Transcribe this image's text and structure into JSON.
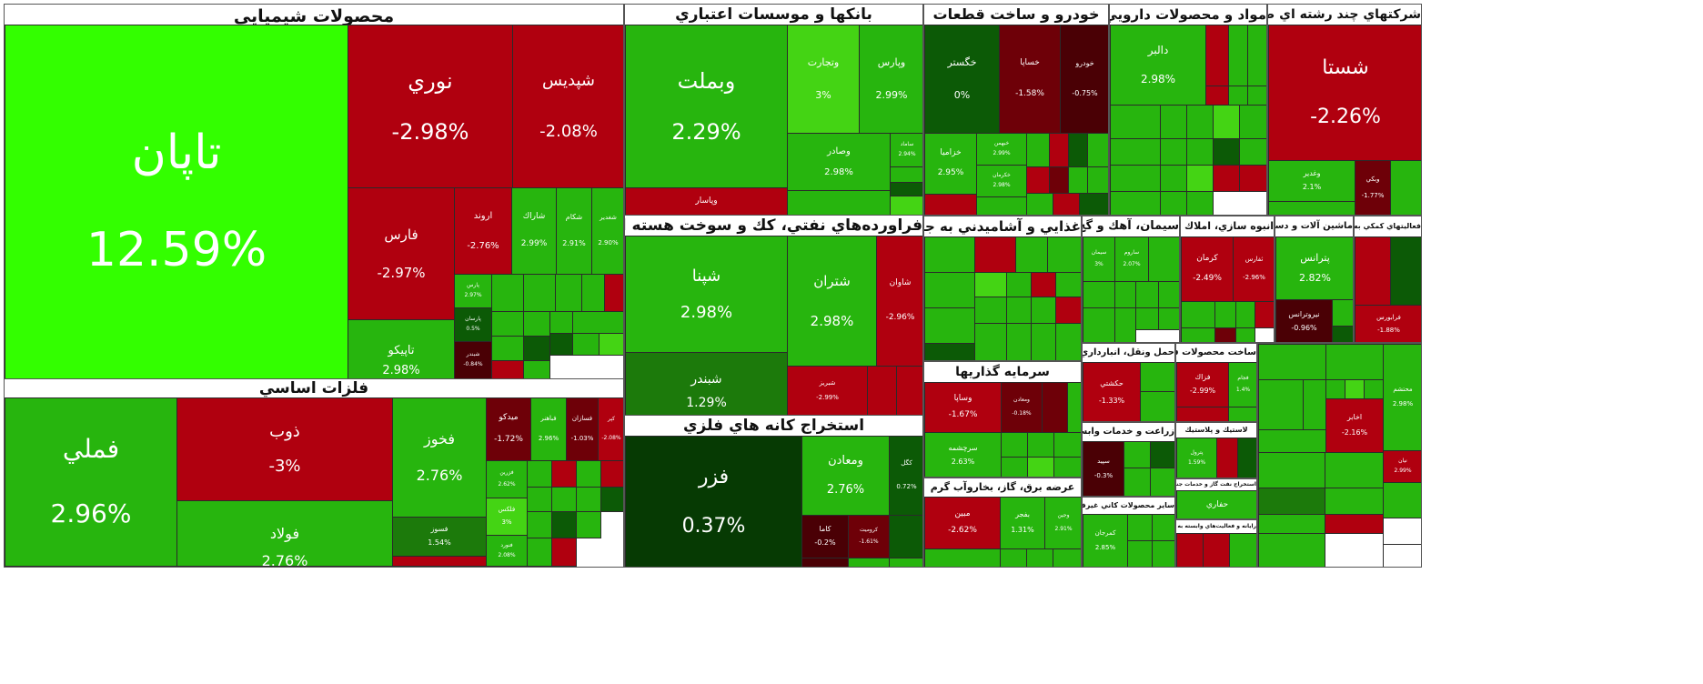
{
  "colors": {
    "bright_green": "#33ff00",
    "green": "#1e9e0a",
    "mid_green": "#27b50e",
    "light_green": "#44d414",
    "dark_green": "#0c5a06",
    "deep_green": "#063a03",
    "red": "#b0000f",
    "dark_red": "#6e0008",
    "deep_red": "#4a0005"
  },
  "sectors": [
    {
      "title": "محصولات شيميايي"
    },
    {
      "title": "فلزات اساسي"
    },
    {
      "title": "بانكها و موسسات اعتباري"
    },
    {
      "title": "فراورده‌هاي نفتي، كك و سوخت هسته اي"
    },
    {
      "title": "استخراج كانه هاي فلزي"
    },
    {
      "title": "خودرو و ساخت قطعات"
    },
    {
      "title": "مواد و محصولات دارويي"
    },
    {
      "title": "شركتهاي چند رشته اي صنعتي"
    },
    {
      "title": "غذايي و آشاميدني به جز قند و شكر"
    },
    {
      "title": "سيمان، آهك و گچ"
    },
    {
      "title": "انبوه سازي، املاك و مستغلات"
    },
    {
      "title": "ماشين آلات و دستگاه‌هاي برقي"
    },
    {
      "title": "فعاليتهاي كمكي به نهادهاي مالي"
    },
    {
      "title": "حمل ونقل، انبارداري و ارتباطات"
    },
    {
      "title": "سرمايه گذاريها"
    },
    {
      "title": "ساخت محصولات فلزي"
    },
    {
      "title": "زراعت و خدمات وابسته"
    },
    {
      "title": "عرضه برق، گاز، بخاروآب گرم"
    },
    {
      "title": "ساير محصولات كاني غيرفلزي"
    },
    {
      "title": "لاستيك و پلاستيك"
    },
    {
      "title": "استخراج نفت گاز و خدمات جنبي جز اكتشاف"
    },
    {
      "title": "رايانه و فعاليت‌هاي وابسته به آن"
    }
  ],
  "tiles": [
    {
      "symbol": "تاپان",
      "change": "12.59%"
    },
    {
      "symbol": "نوري",
      "change": "-2.98%"
    },
    {
      "symbol": "شپديس",
      "change": "-2.08%"
    },
    {
      "symbol": "فارس",
      "change": "-2.97%"
    },
    {
      "symbol": "اروند",
      "change": "-2.76%"
    },
    {
      "symbol": "شاراك",
      "change": "2.99%"
    },
    {
      "symbol": "شكام",
      "change": "2.91%"
    },
    {
      "symbol": "شغدير",
      "change": "2.90%"
    },
    {
      "symbol": "تاپيكو",
      "change": "2.98%"
    },
    {
      "symbol": "پارس",
      "change": "2.97%"
    },
    {
      "symbol": "پارسان",
      "change": "0.5%"
    },
    {
      "symbol": "شبندر",
      "change": "-0.84%"
    },
    {
      "symbol": "فملي",
      "change": "2.96%"
    },
    {
      "symbol": "ذوب",
      "change": "-3%"
    },
    {
      "symbol": "فولاد",
      "change": "2.76%"
    },
    {
      "symbol": "فخوز",
      "change": "2.76%"
    },
    {
      "symbol": "فسوز",
      "change": "1.54%"
    },
    {
      "symbol": "ميدكو",
      "change": "-1.72%"
    },
    {
      "symbol": "فباهنر",
      "change": "2.96%"
    },
    {
      "symbol": "فسازان",
      "change": "-1.03%"
    },
    {
      "symbol": "كپر",
      "change": "-2.08%"
    },
    {
      "symbol": "فزرين",
      "change": "2.62%"
    },
    {
      "symbol": "فلكس",
      "change": "3%"
    },
    {
      "symbol": "فنورد",
      "change": "2.08%"
    },
    {
      "symbol": "وبملت",
      "change": "2.29%"
    },
    {
      "symbol": "وتجارت",
      "change": "3%"
    },
    {
      "symbol": "وپارس",
      "change": "2.99%"
    },
    {
      "symbol": "وصادر",
      "change": "2.98%"
    },
    {
      "symbol": "وپاسار",
      "change": ""
    },
    {
      "symbol": "ساماد",
      "change": "2.94%"
    },
    {
      "symbol": "شپنا",
      "change": "2.98%"
    },
    {
      "symbol": "شتران",
      "change": "2.98%"
    },
    {
      "symbol": "شاوان",
      "change": "-2.96%"
    },
    {
      "symbol": "شبندر",
      "change": "1.29%"
    },
    {
      "symbol": "شبريز",
      "change": "-2.99%"
    },
    {
      "symbol": "فزر",
      "change": "0.37%"
    },
    {
      "symbol": "ومعادن",
      "change": "2.76%"
    },
    {
      "symbol": "كگل",
      "change": "0.72%"
    },
    {
      "symbol": "كاما",
      "change": "-0.2%"
    },
    {
      "symbol": "كروميت",
      "change": "-1.61%"
    },
    {
      "symbol": "خگستر",
      "change": "0%"
    },
    {
      "symbol": "خساپا",
      "change": "-1.58%"
    },
    {
      "symbol": "خودرو",
      "change": "-0.75%"
    },
    {
      "symbol": "خزاميا",
      "change": "2.95%"
    },
    {
      "symbol": "خبهمن",
      "change": "2.99%"
    },
    {
      "symbol": "خكرمان",
      "change": "2.98%"
    },
    {
      "symbol": "دالبر",
      "change": "2.98%"
    },
    {
      "symbol": "شستا",
      "change": "-2.26%"
    },
    {
      "symbol": "وغدير",
      "change": "2.1%"
    },
    {
      "symbol": "وبكي",
      "change": "-1.77%"
    },
    {
      "symbol": "پترانس",
      "change": "2.82%"
    },
    {
      "symbol": "نيروترانس",
      "change": "-0.96%"
    },
    {
      "symbol": "فرابورس",
      "change": "-1.88%"
    },
    {
      "symbol": "كرمان",
      "change": "-2.49%"
    },
    {
      "symbol": "ثفارس",
      "change": "-2.96%"
    },
    {
      "symbol": "حكشتي",
      "change": "-1.33%"
    },
    {
      "symbol": "وساپا",
      "change": "-1.67%"
    },
    {
      "symbol": "ومعادن",
      "change": "-0.18%"
    },
    {
      "symbol": "سرچشمه",
      "change": "2.63%"
    },
    {
      "symbol": "فزاك",
      "change": "-2.99%"
    },
    {
      "symbol": "فجام",
      "change": "1.4%"
    },
    {
      "symbol": "اخابر",
      "change": "-2.16%"
    },
    {
      "symbol": "مبين",
      "change": "-2.62%"
    },
    {
      "symbol": "بفجر",
      "change": "1.31%"
    },
    {
      "symbol": "وجين",
      "change": "2.91%"
    },
    {
      "symbol": "كمرجان",
      "change": "2.85%"
    },
    {
      "symbol": "سپيد",
      "change": "-0.3%"
    },
    {
      "symbol": "پترول",
      "change": "1.59%"
    },
    {
      "symbol": "حفاري",
      "change": ""
    },
    {
      "symbol": "محتشم",
      "change": "2.98%"
    },
    {
      "symbol": "نيان",
      "change": "2.99%"
    },
    {
      "symbol": "سيمان",
      "change": "3%"
    },
    {
      "symbol": "ساروم",
      "change": "2.07%"
    }
  ]
}
